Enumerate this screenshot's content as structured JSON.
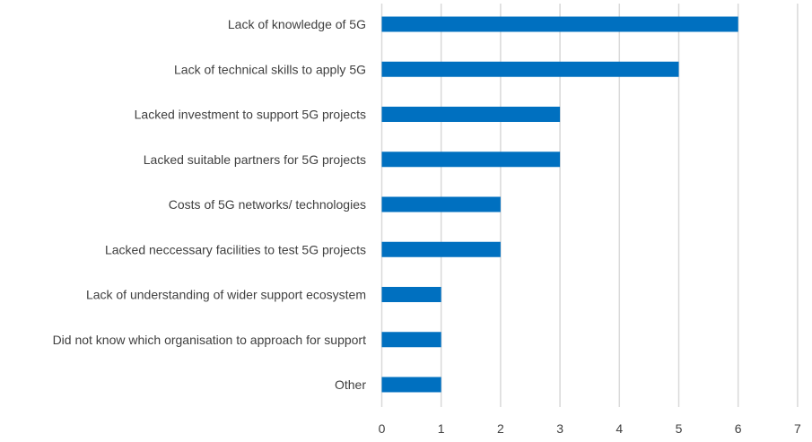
{
  "chart_data": {
    "type": "bar",
    "orientation": "horizontal",
    "title": "",
    "xlabel": "",
    "ylabel": "",
    "categories": [
      "Lack of knowledge of 5G",
      "Lack of technical skills to apply 5G",
      "Lacked investment to support 5G projects",
      "Lacked suitable partners for 5G projects",
      "Costs of 5G networks/ technologies",
      "Lacked neccessary facilities to test 5G projects",
      "Lack of understanding of wider support ecosystem",
      "Did not know which organisation to approach for support",
      "Other"
    ],
    "values": [
      6,
      5,
      3,
      3,
      2,
      2,
      1,
      1,
      1
    ],
    "xlim": [
      0,
      7
    ],
    "xticks": [
      "0",
      "1",
      "2",
      "3",
      "4",
      "5",
      "6",
      "7"
    ],
    "grid": true,
    "legend": "none",
    "bar_color": "#0070C0",
    "grid_color": "#D9D9D9"
  }
}
